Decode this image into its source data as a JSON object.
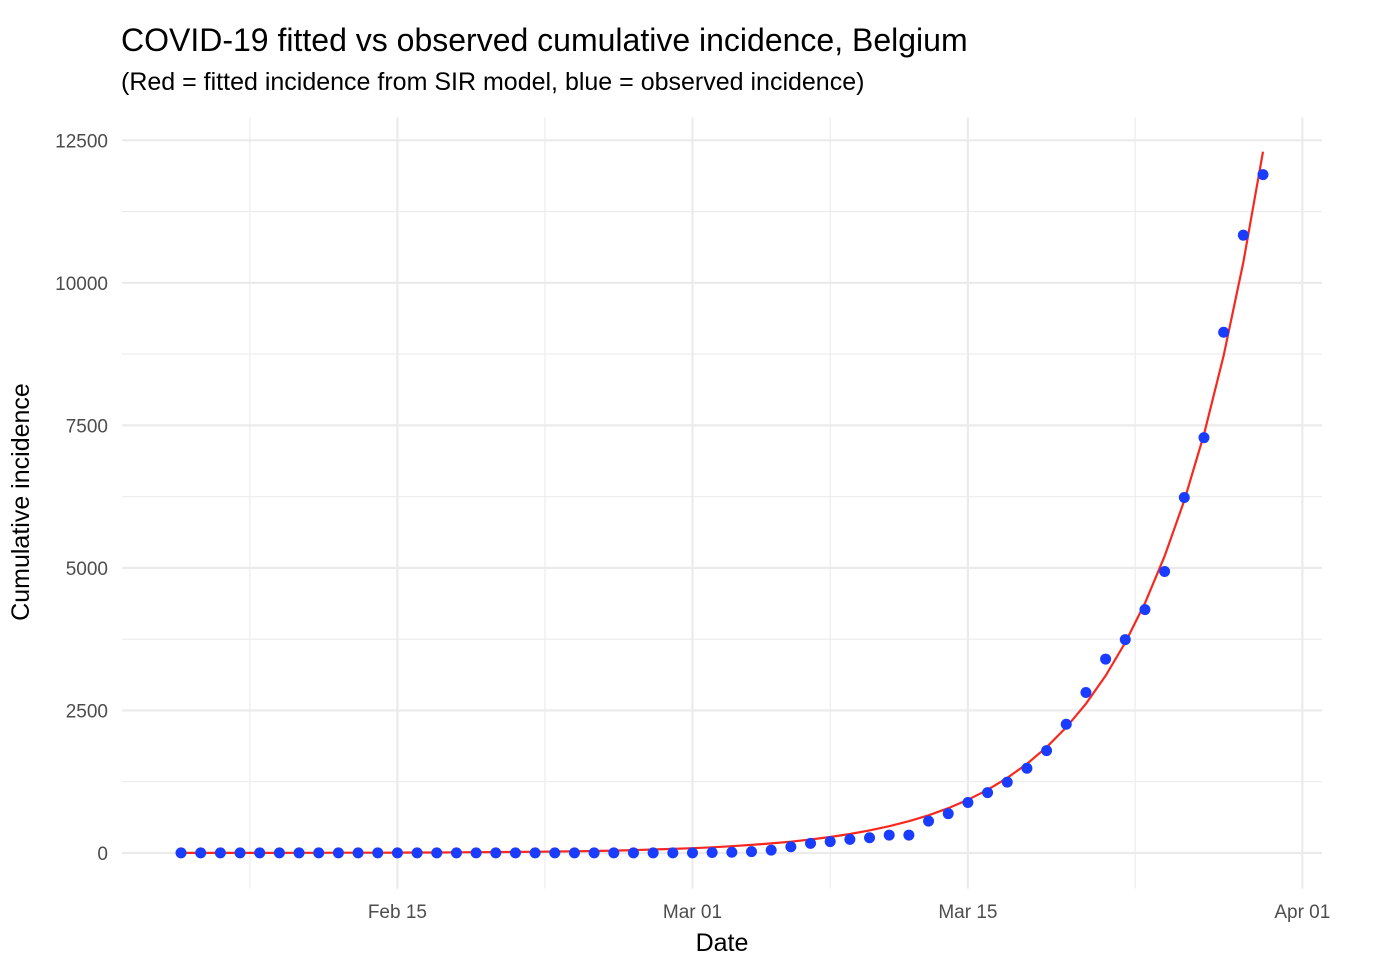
{
  "chart_data": {
    "type": "line",
    "title": "COVID-19 fitted vs observed cumulative incidence, Belgium",
    "subtitle": "(Red = fitted incidence from SIR model, blue = observed incidence)",
    "xlabel": "Date",
    "ylabel": "Cumulative incidence",
    "xlim": [
      "2020-02-01",
      "2020-04-02"
    ],
    "ylim": [
      -625,
      12900
    ],
    "x_ticks": [
      {
        "date": "2020-02-15",
        "label": "Feb 15"
      },
      {
        "date": "2020-03-01",
        "label": "Mar 01"
      },
      {
        "date": "2020-03-15",
        "label": "Mar 15"
      },
      {
        "date": "2020-04-01",
        "label": "Apr 01"
      }
    ],
    "y_ticks": [
      {
        "value": 0,
        "label": "0"
      },
      {
        "value": 2500,
        "label": "2500"
      },
      {
        "value": 5000,
        "label": "5000"
      },
      {
        "value": 7500,
        "label": "7500"
      },
      {
        "value": 10000,
        "label": "10000"
      },
      {
        "value": 12500,
        "label": "12500"
      }
    ],
    "grid": true,
    "start_date": "2020-02-04",
    "series": [
      {
        "type": "scatter",
        "color": "#1a3cff",
        "values": [
          1,
          1,
          1,
          1,
          1,
          1,
          1,
          1,
          1,
          1,
          1,
          1,
          1,
          1,
          1,
          1,
          1,
          1,
          1,
          1,
          1,
          1,
          1,
          1,
          1,
          1,
          2,
          8,
          13,
          23,
          50,
          109,
          169,
          200,
          239,
          267,
          314,
          314,
          559,
          689,
          886,
          1058,
          1243,
          1486,
          1795,
          2257,
          2815,
          3401,
          3743,
          4269,
          4937,
          6235,
          7284,
          9134,
          10836,
          11899
        ]
      },
      {
        "type": "line",
        "color": "#f8281e",
        "values": [
          1,
          1,
          1,
          2,
          2,
          2,
          3,
          3,
          4,
          4,
          5,
          6,
          8,
          9,
          11,
          13,
          15,
          18,
          21,
          25,
          30,
          35,
          42,
          50,
          60,
          71,
          84,
          100,
          118,
          141,
          167,
          198,
          236,
          280,
          332,
          395,
          469,
          557,
          661,
          785,
          933,
          1108,
          1316,
          1562,
          1856,
          2204,
          2617,
          3108,
          3691,
          4384,
          5206,
          6183,
          7343,
          8721,
          10357,
          12300
        ]
      }
    ]
  }
}
